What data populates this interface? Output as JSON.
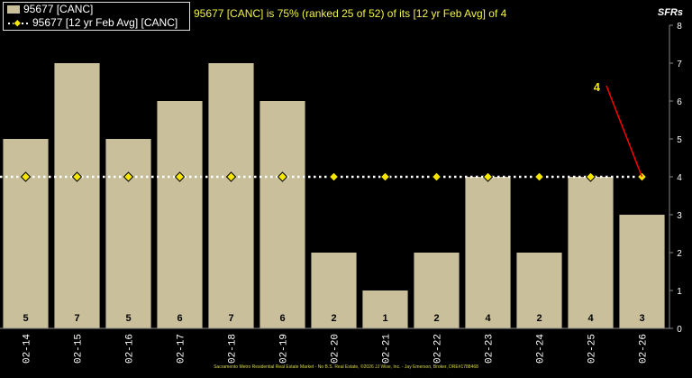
{
  "legend": {
    "bar_label": "95677 [CANC]",
    "line_label": "95677 [12 yr Feb Avg] [CANC]"
  },
  "title": "95677 [CANC] is 75% (ranked 25 of 52) of its [12 yr Feb Avg] of 4",
  "yunit": "SFRs",
  "footer": "Sacramento Metro Residential Real Estate Market - No B.S. Real Estate, ©2026 JJ Wise, Inc. - Jay Emerson, Broker, DRE#1788468",
  "callout": "4",
  "colors": {
    "bar": "#c9c09b",
    "avg_marker": "#f5e600",
    "callout": "#f5e600",
    "callout_line": "#ff0000",
    "background": "#000000"
  },
  "chart_data": {
    "type": "bar",
    "categories": [
      "02-14",
      "02-15",
      "02-16",
      "02-17",
      "02-18",
      "02-19",
      "02-20",
      "02-21",
      "02-22",
      "02-23",
      "02-24",
      "02-25",
      "02-26"
    ],
    "series": [
      {
        "name": "95677 [CANC]",
        "type": "bar",
        "values": [
          5,
          7,
          5,
          6,
          7,
          6,
          2,
          1,
          2,
          4,
          2,
          4,
          3
        ]
      },
      {
        "name": "95677 [12 yr Feb Avg] [CANC]",
        "type": "line",
        "values": [
          4,
          4,
          4,
          4,
          4,
          4,
          4,
          4,
          4,
          4,
          4,
          4,
          4
        ]
      }
    ],
    "ylim": [
      0,
      8
    ],
    "yticks": [
      0,
      1,
      2,
      3,
      4,
      5,
      6,
      7,
      8
    ],
    "grid": false
  }
}
